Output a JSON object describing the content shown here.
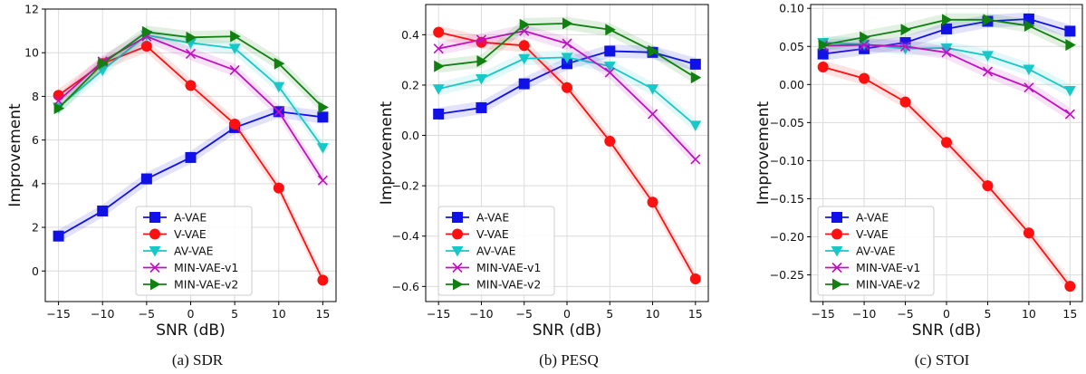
{
  "colors": {
    "A-VAE": "#1010e8",
    "V-VAE": "#ff1010",
    "AV-VAE": "#18c8c8",
    "MIN-VAE-v1": "#c010c0",
    "MIN-VAE-v2": "#108010"
  },
  "chart_data": [
    {
      "type": "line",
      "caption": "(a) SDR",
      "xlabel": "SNR (dB)",
      "ylabel": "Improvement",
      "x": [
        -15,
        -10,
        -5,
        0,
        5,
        10,
        15
      ],
      "xticks": [
        "−15",
        "−10",
        "−5",
        "0",
        "5",
        "10",
        "15"
      ],
      "ylim": [
        -1.4,
        12
      ],
      "yticks": [
        "0",
        "2",
        "4",
        "6",
        "8",
        "10",
        "12"
      ],
      "ytick_values": [
        0,
        2,
        4,
        6,
        8,
        10,
        12
      ],
      "grid": true,
      "legend": "bottom-center",
      "series": [
        {
          "name": "A-VAE",
          "marker": "square",
          "values": [
            1.6,
            2.75,
            4.22,
            5.2,
            6.57,
            7.3,
            7.05
          ]
        },
        {
          "name": "V-VAE",
          "marker": "circle",
          "values": [
            8.05,
            9.5,
            10.3,
            8.5,
            6.73,
            3.8,
            -0.42
          ]
        },
        {
          "name": "AV-VAE",
          "marker": "triangle-down",
          "values": [
            7.5,
            9.2,
            10.8,
            10.45,
            10.2,
            8.45,
            5.65
          ]
        },
        {
          "name": "MIN-VAE-v1",
          "marker": "x",
          "values": [
            7.8,
            9.6,
            10.75,
            9.95,
            9.2,
            7.3,
            4.15
          ]
        },
        {
          "name": "MIN-VAE-v2",
          "marker": "triangle-right",
          "values": [
            7.45,
            9.5,
            10.95,
            10.7,
            10.75,
            9.5,
            7.5
          ]
        }
      ]
    },
    {
      "type": "line",
      "caption": "(b) PESQ",
      "xlabel": "SNR (dB)",
      "ylabel": "Improvement",
      "x": [
        -15,
        -10,
        -5,
        0,
        5,
        10,
        15
      ],
      "xticks": [
        "−15",
        "−10",
        "−5",
        "0",
        "5",
        "10",
        "15"
      ],
      "ylim": [
        -0.66,
        0.52
      ],
      "yticks": [
        "−0.6",
        "−0.4",
        "−0.2",
        "0.0",
        "0.2",
        "0.4"
      ],
      "ytick_values": [
        -0.6,
        -0.4,
        -0.2,
        0.0,
        0.2,
        0.4
      ],
      "grid": true,
      "legend": "bottom-left",
      "series": [
        {
          "name": "A-VAE",
          "marker": "square",
          "values": [
            0.085,
            0.11,
            0.205,
            0.285,
            0.335,
            0.33,
            0.283
          ]
        },
        {
          "name": "V-VAE",
          "marker": "circle",
          "values": [
            0.41,
            0.37,
            0.357,
            0.19,
            -0.023,
            -0.265,
            -0.57
          ]
        },
        {
          "name": "AV-VAE",
          "marker": "triangle-down",
          "values": [
            0.185,
            0.225,
            0.305,
            0.31,
            0.275,
            0.185,
            0.04
          ]
        },
        {
          "name": "MIN-VAE-v1",
          "marker": "x",
          "values": [
            0.345,
            0.38,
            0.415,
            0.365,
            0.25,
            0.085,
            -0.095
          ]
        },
        {
          "name": "MIN-VAE-v2",
          "marker": "triangle-right",
          "values": [
            0.275,
            0.295,
            0.44,
            0.445,
            0.42,
            0.335,
            0.23
          ]
        }
      ]
    },
    {
      "type": "line",
      "caption": "(c) STOI",
      "xlabel": "SNR (dB)",
      "ylabel": "Improvement",
      "x": [
        -15,
        -10,
        -5,
        0,
        5,
        10,
        15
      ],
      "xticks": [
        "−15",
        "−10",
        "−5",
        "0",
        "5",
        "10",
        "15"
      ],
      "ylim": [
        -0.285,
        0.105
      ],
      "yticks": [
        "−0.25",
        "−0.20",
        "−0.15",
        "−0.10",
        "−0.05",
        "0.00",
        "0.05",
        "0.10"
      ],
      "ytick_values": [
        -0.25,
        -0.2,
        -0.15,
        -0.1,
        -0.05,
        0.0,
        0.05,
        0.1
      ],
      "grid": true,
      "legend": "bottom-left",
      "series": [
        {
          "name": "A-VAE",
          "marker": "square",
          "values": [
            0.04,
            0.047,
            0.055,
            0.073,
            0.083,
            0.086,
            0.07
          ]
        },
        {
          "name": "V-VAE",
          "marker": "circle",
          "values": [
            0.023,
            0.008,
            -0.023,
            -0.076,
            -0.133,
            -0.195,
            -0.265
          ]
        },
        {
          "name": "AV-VAE",
          "marker": "triangle-down",
          "values": [
            0.055,
            0.053,
            0.047,
            0.048,
            0.038,
            0.02,
            -0.008
          ]
        },
        {
          "name": "MIN-VAE-v1",
          "marker": "x",
          "values": [
            0.051,
            0.052,
            0.05,
            0.042,
            0.017,
            -0.004,
            -0.039
          ]
        },
        {
          "name": "MIN-VAE-v2",
          "marker": "triangle-right",
          "values": [
            0.052,
            0.062,
            0.072,
            0.085,
            0.085,
            0.077,
            0.052
          ]
        }
      ]
    }
  ]
}
